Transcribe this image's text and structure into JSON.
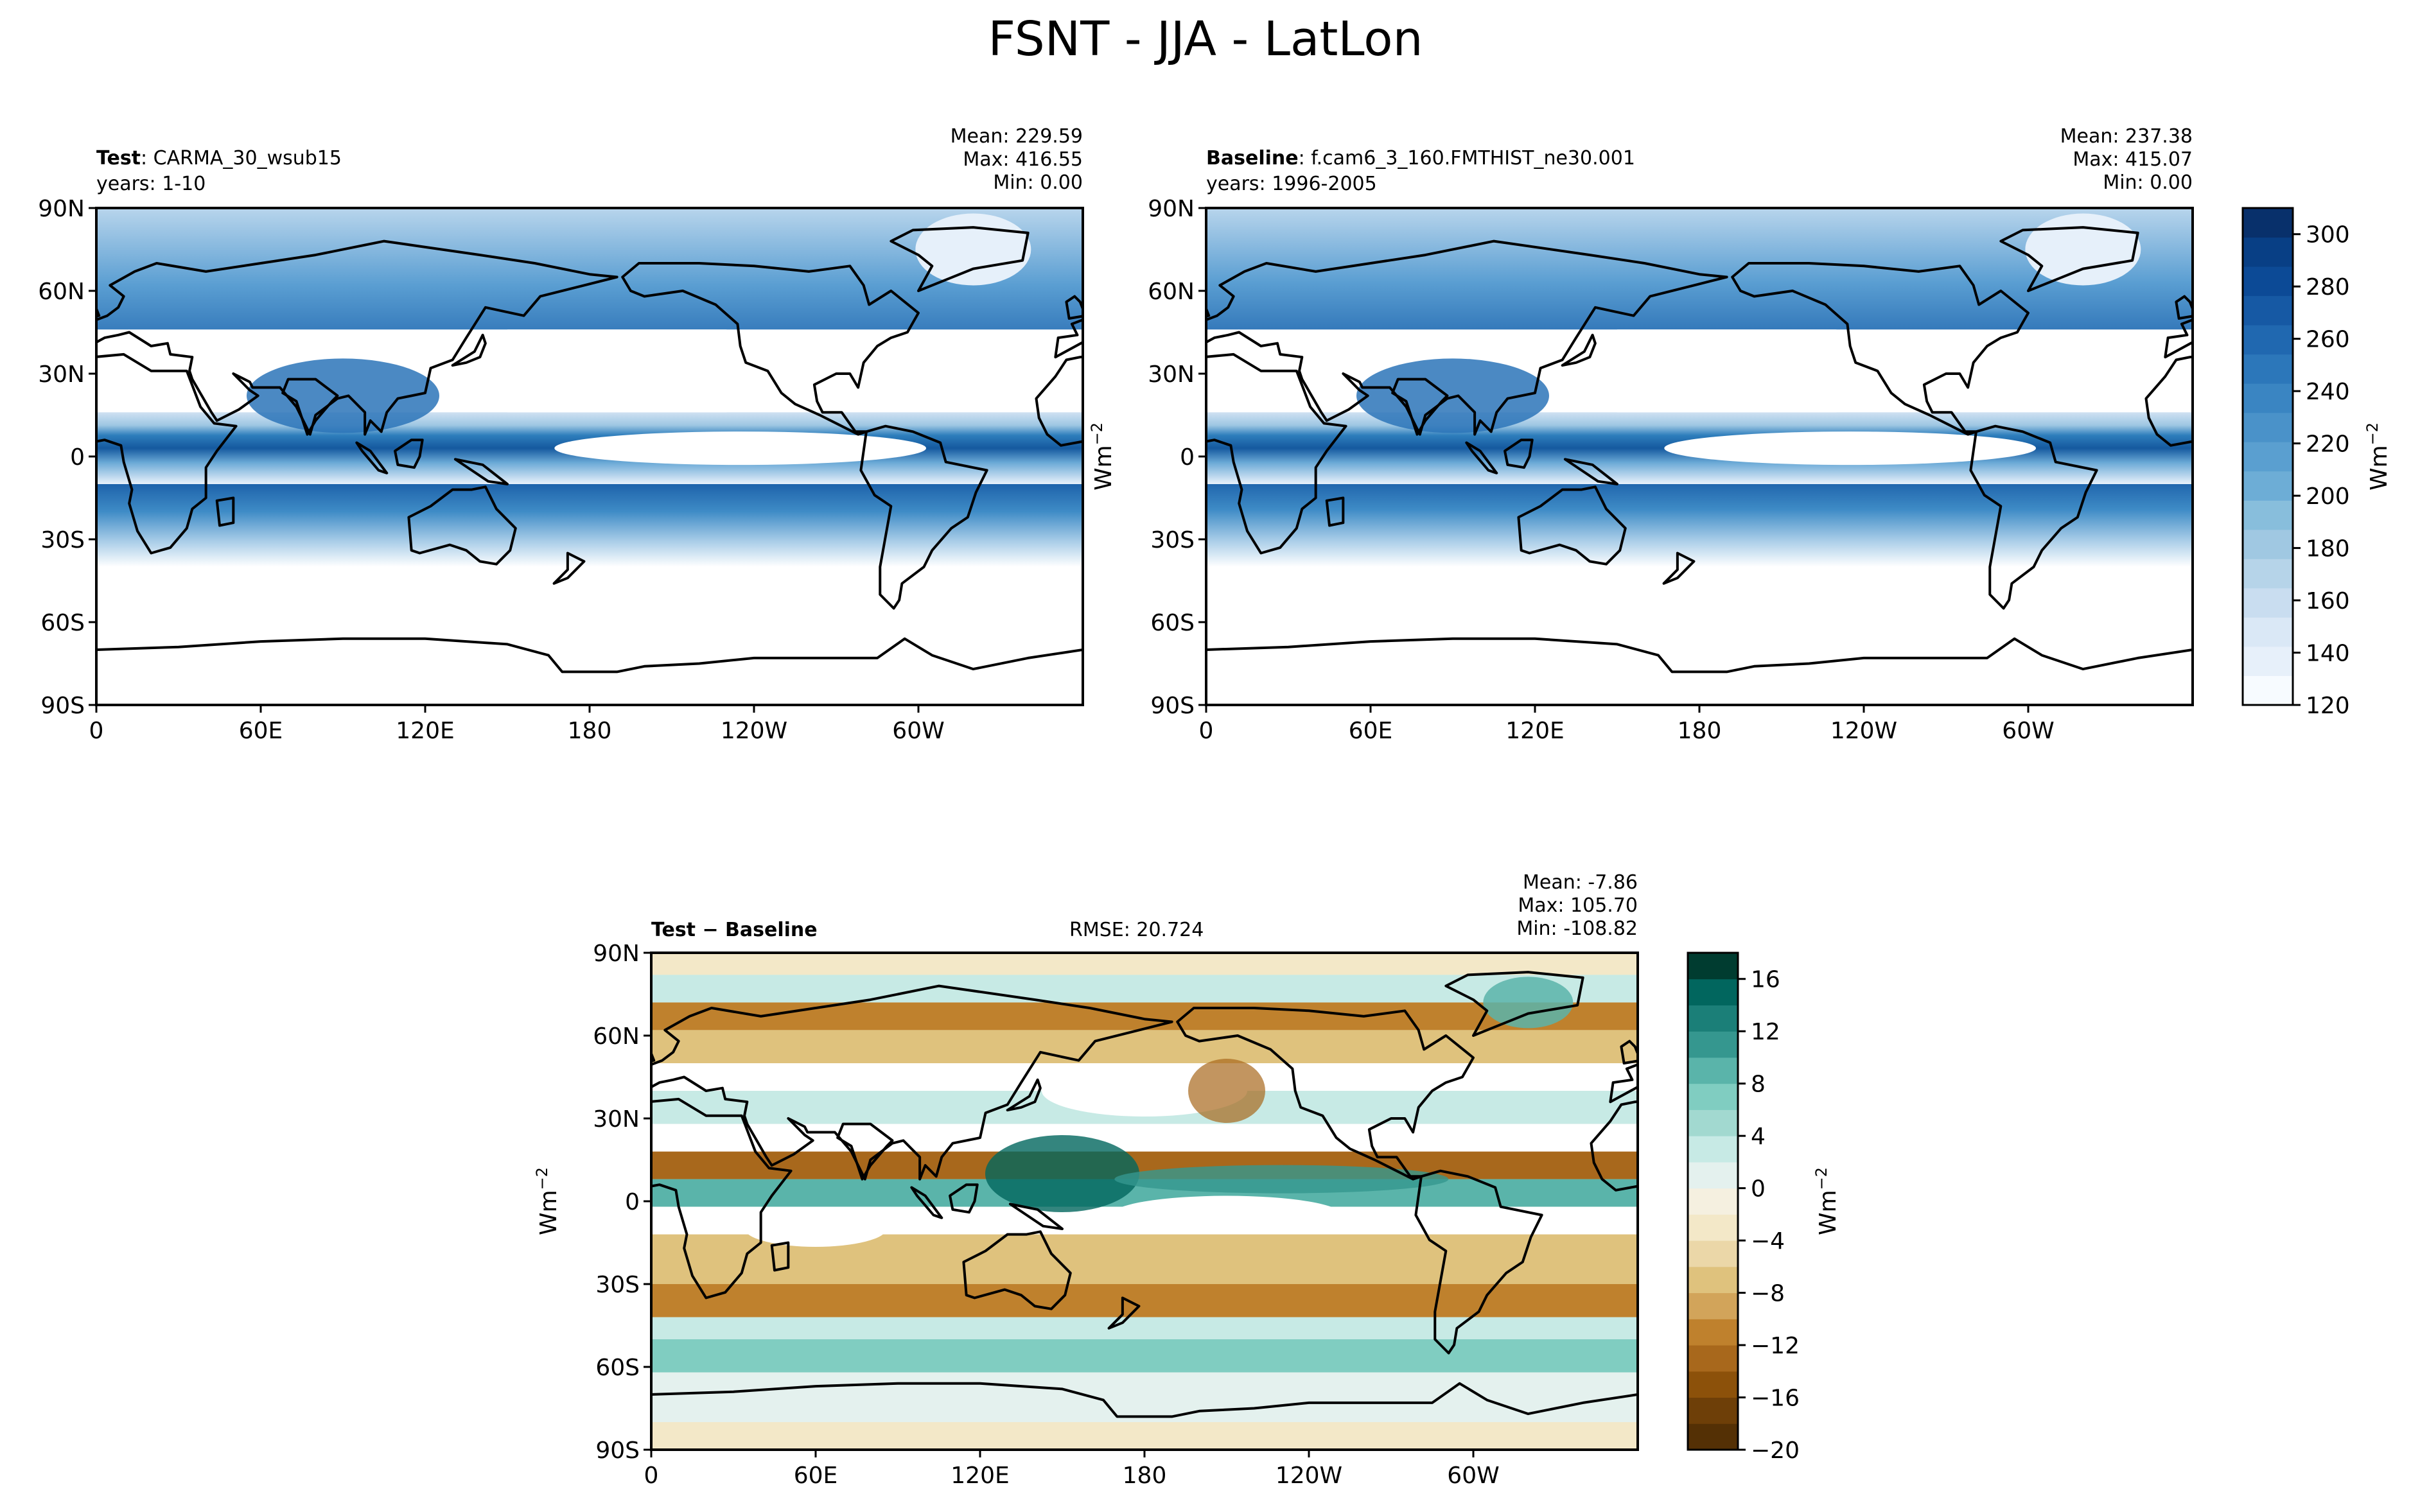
{
  "title": "FSNT - JJA - LatLon",
  "chart_data": [
    {
      "type": "heatmap",
      "panel": "test",
      "label_bold": "Test",
      "label_rest": ": CARMA_30_wsub15",
      "years": "years: 1-10",
      "stats": [
        "Mean: 229.59",
        "Max: 416.55",
        "Min:  0.00"
      ],
      "xticks": [
        "0",
        "60E",
        "120E",
        "180",
        "120W",
        "60W"
      ],
      "yticks": [
        "90N",
        "60N",
        "30N",
        "0",
        "30S",
        "60S",
        "90S"
      ],
      "xlim": [
        0,
        360
      ],
      "ylim": [
        -90,
        90
      ],
      "zero_band": [
        -11,
        34
      ],
      "core_band": [
        -3,
        8
      ],
      "extra_blue_band": [
        -1,
        15
      ]
    },
    {
      "type": "heatmap",
      "panel": "baseline",
      "label_bold": "Baseline",
      "label_rest": ": f.cam6_3_160.FMTHIST_ne30.001",
      "years": "years: 1996-2005",
      "stats": [
        "Mean: 237.38",
        "Max: 415.07",
        "Min:  0.00"
      ],
      "xticks": [
        "0",
        "60E",
        "120E",
        "180",
        "120W",
        "60W"
      ],
      "yticks": [
        "90N",
        "60N",
        "30N",
        "0",
        "30S",
        "60S",
        "90S"
      ],
      "xlim": [
        0,
        360
      ],
      "ylim": [
        -90,
        90
      ],
      "zero_band": [
        -10,
        36
      ],
      "core_band": [
        -4,
        8
      ],
      "extra_blue_band": [
        -2,
        16
      ],
      "colorbar": {
        "ticks": [
          "300",
          "280",
          "260",
          "240",
          "220",
          "200",
          "180",
          "160",
          "140",
          "120"
        ],
        "range": [
          120,
          310
        ],
        "label": "Wm",
        "label_sup": "−2",
        "colors": [
          "#f7fbff",
          "#e7f0fa",
          "#dae8f6",
          "#c9ddf0",
          "#b6d4e9",
          "#a0c8e2",
          "#88bedc",
          "#6dadd6",
          "#5a9fd0",
          "#4a92c9",
          "#3a85c2",
          "#2c77ba",
          "#2068b0",
          "#1659a4",
          "#0c4a96",
          "#083f85",
          "#08306b"
        ]
      }
    },
    {
      "type": "heatmap",
      "panel": "difference",
      "label_bold": "Test − Baseline",
      "rmse": "RMSE: 20.724",
      "stats": [
        "Mean: -7.86",
        "Max: 105.70",
        "Min: -108.82"
      ],
      "xticks": [
        "0",
        "60E",
        "120E",
        "180",
        "120W",
        "60W"
      ],
      "yticks": [
        "90N",
        "60N",
        "30N",
        "0",
        "30S",
        "60S",
        "90S"
      ],
      "xlim": [
        0,
        360
      ],
      "ylim": [
        -90,
        90
      ],
      "ylabel": "Wm",
      "ylabel_sup": "−2",
      "colorbar": {
        "ticks": [
          "16",
          "12",
          "8",
          "4",
          "0",
          "−4",
          "−8",
          "−12",
          "−16",
          "−20"
        ],
        "range": [
          -20,
          18
        ],
        "label": "Wm",
        "label_sup": "−2",
        "colors": [
          "#543005",
          "#6e3f08",
          "#8c510a",
          "#a8681c",
          "#bf812d",
          "#d2a45a",
          "#dfc27d",
          "#ebd7a8",
          "#f3e8c8",
          "#f5f0e0",
          "#e4f1ee",
          "#c7eae5",
          "#a2d9d0",
          "#80cdc1",
          "#5ab4aa",
          "#35978f",
          "#1b7f78",
          "#01665e",
          "#003c30"
        ]
      }
    }
  ]
}
